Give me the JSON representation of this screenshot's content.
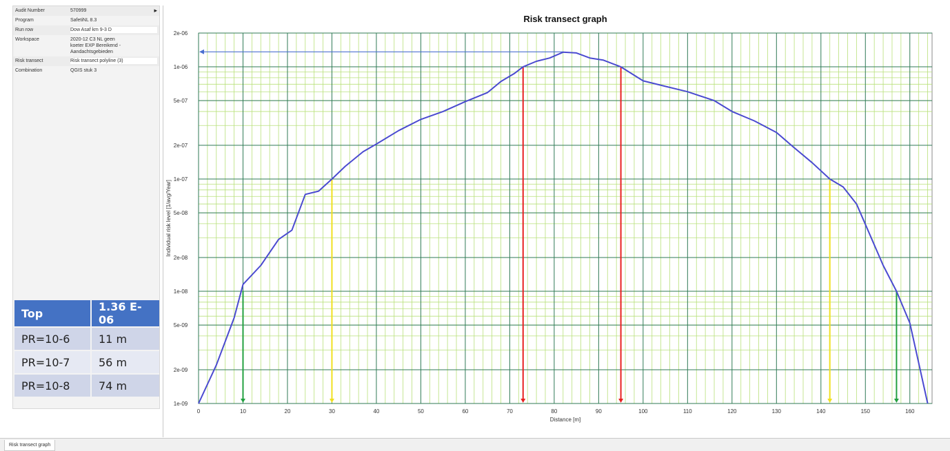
{
  "properties": [
    {
      "key": "Audit Number",
      "value": "570999"
    },
    {
      "key": "Program",
      "value": "SafetiNL 8.3"
    },
    {
      "key": "Run row",
      "value": "Dow Asaf km 9-3 D"
    },
    {
      "key": "Workspace",
      "value": "2020-12 C3 NL geen\nkoeter EXP Bereikend -\nAandachtsgebieden"
    },
    {
      "key": "Risk transect",
      "value": "Risk transect polyline (3)"
    },
    {
      "key": "Combination",
      "value": "QGIS stuk 3"
    }
  ],
  "summary": {
    "header": {
      "label": "Top",
      "value": "1.36 E-06"
    },
    "rows": [
      {
        "label": "PR=10-6",
        "value": "11 m"
      },
      {
        "label": "PR=10-7",
        "value": "56 m"
      },
      {
        "label": "PR=10-8",
        "value": "74 m"
      }
    ]
  },
  "tab": {
    "label": "Risk transect graph"
  },
  "chart_data": {
    "type": "line",
    "title": "Risk transect graph",
    "xlabel": "Distance [m]",
    "ylabel": "Individual risk level [1/avg/Year]",
    "xlim": [
      0,
      165
    ],
    "ylim": [
      1e-09,
      2e-06
    ],
    "yscale": "log",
    "grid": true,
    "x_ticks": [
      0,
      10,
      20,
      30,
      40,
      50,
      60,
      70,
      80,
      90,
      100,
      110,
      120,
      130,
      140,
      150,
      160
    ],
    "x_tick_labels": [
      "0",
      "10",
      "20",
      "30",
      "40",
      "50",
      "60",
      "70",
      "80",
      "90",
      "100",
      "110",
      "120",
      "130",
      "140",
      "150",
      "160"
    ],
    "y_ticks": [
      1e-09,
      2e-09,
      5e-09,
      1e-08,
      2e-08,
      5e-08,
      1e-07,
      2e-07,
      5e-07,
      1e-06,
      2e-06
    ],
    "y_tick_labels": [
      "1e-09",
      "2e-09",
      "5e-09",
      "1e-08",
      "2e-08",
      "5e-08",
      "1e-07",
      "2e-07",
      "5e-07",
      "1e-06",
      "2e-06"
    ],
    "series": [
      {
        "color": "#4a4ad0",
        "x": [
          0,
          4,
          8,
          10,
          14,
          18,
          21,
          24,
          27,
          30,
          33,
          37,
          40,
          45,
          50,
          55,
          60,
          65,
          68,
          71,
          73,
          76,
          79,
          82,
          85,
          88,
          91,
          95,
          100,
          105,
          110,
          116,
          120,
          125,
          130,
          134,
          138,
          142,
          145,
          148,
          151,
          154,
          157,
          160,
          164
        ],
        "y": [
          1e-09,
          2.2e-09,
          5.8e-09,
          1.15e-08,
          1.7e-08,
          2.9e-08,
          3.5e-08,
          7.3e-08,
          7.8e-08,
          1e-07,
          1.3e-07,
          1.75e-07,
          2.05e-07,
          2.7e-07,
          3.4e-07,
          4e-07,
          4.9e-07,
          5.9e-07,
          7.4e-07,
          8.7e-07,
          1e-06,
          1.12e-06,
          1.2e-06,
          1.35e-06,
          1.33e-06,
          1.2e-06,
          1.15e-06,
          1e-06,
          7.5e-07,
          6.7e-07,
          6e-07,
          5e-07,
          4e-07,
          3.3e-07,
          2.6e-07,
          1.9e-07,
          1.4e-07,
          1e-07,
          8.5e-08,
          6e-08,
          3.2e-08,
          1.7e-08,
          1e-08,
          5.2e-09,
          1e-09
        ]
      }
    ],
    "top_marker": {
      "x": 82,
      "y": 1.36e-06,
      "color": "#4a6fd0"
    },
    "contour_markers": [
      {
        "x": 10,
        "from_y": 1e-08,
        "color": "#22a040"
      },
      {
        "x": 157,
        "from_y": 1e-08,
        "color": "#22a040"
      },
      {
        "x": 30,
        "from_y": 1e-07,
        "color": "#f0e020"
      },
      {
        "x": 142,
        "from_y": 1e-07,
        "color": "#f0e020"
      },
      {
        "x": 73,
        "from_y": 1e-06,
        "color": "#e82020"
      },
      {
        "x": 95,
        "from_y": 1e-06,
        "color": "#e82020"
      }
    ]
  }
}
